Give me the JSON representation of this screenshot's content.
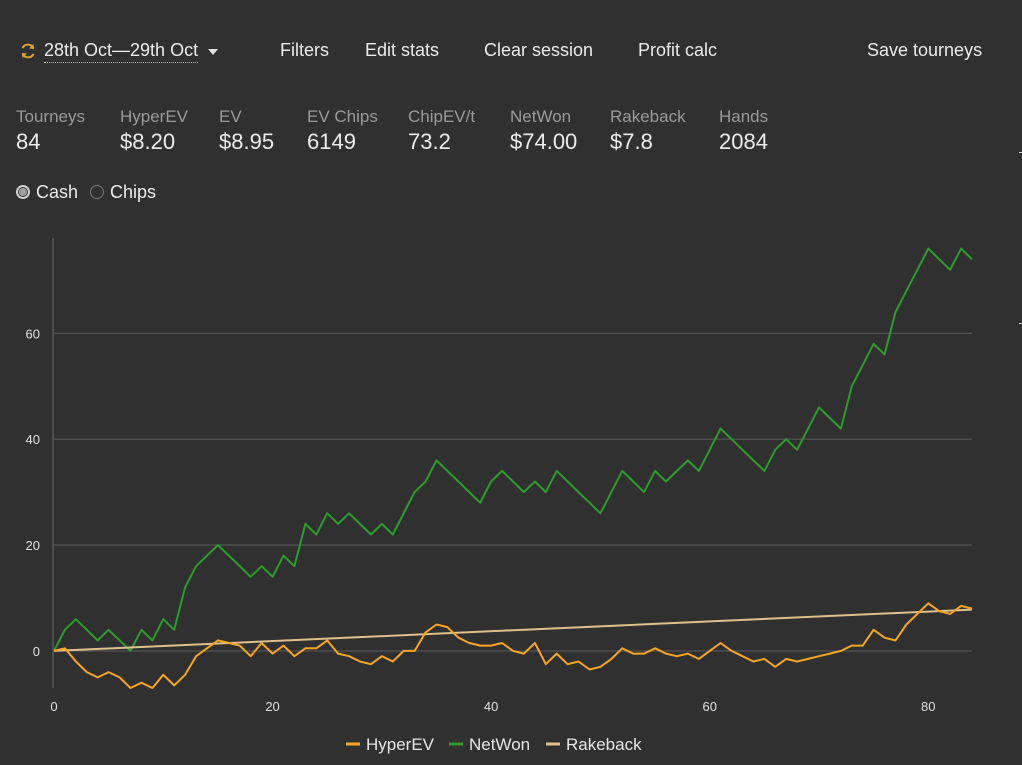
{
  "toolbar": {
    "date_range": "28th Oct—29th Oct",
    "filters": "Filters",
    "edit_stats": "Edit stats",
    "clear_session": "Clear session",
    "profit_calc": "Profit calc",
    "save_tourneys": "Save tourneys"
  },
  "stats": [
    {
      "label": "Tourneys",
      "value": "84"
    },
    {
      "label": "HyperEV",
      "value": "$8.20"
    },
    {
      "label": "EV",
      "value": "$8.95"
    },
    {
      "label": "EV Chips",
      "value": "6149"
    },
    {
      "label": "ChipEV/t",
      "value": "73.2"
    },
    {
      "label": "NetWon",
      "value": "$74.00"
    },
    {
      "label": "Rakeback",
      "value": "$7.8"
    },
    {
      "label": "Hands",
      "value": "2084"
    }
  ],
  "mode": {
    "options": [
      "Cash",
      "Chips"
    ],
    "selected": "Cash"
  },
  "chart_data": {
    "type": "line",
    "xlim": [
      0,
      84
    ],
    "ylim": [
      -7,
      78
    ],
    "x_ticks": [
      0,
      20,
      40,
      60,
      80
    ],
    "y_ticks": [
      0,
      20,
      40,
      60
    ],
    "grid": true,
    "legend_position": "bottom",
    "series": [
      {
        "name": "HyperEV",
        "color": "#f5a623",
        "values": [
          0,
          0.5,
          -2,
          -4,
          -5,
          -4,
          -5,
          -7,
          -6,
          -7,
          -4.5,
          -6.5,
          -4.5,
          -1,
          0.5,
          2,
          1.5,
          1,
          -1,
          1.5,
          -0.5,
          1,
          -1,
          0.5,
          0.5,
          2,
          -0.5,
          -1,
          -2,
          -2.5,
          -1,
          -2,
          0,
          0,
          3.5,
          5,
          4.5,
          2.5,
          1.5,
          1,
          1,
          1.5,
          0,
          -0.5,
          1.5,
          -2.5,
          -0.5,
          -2.5,
          -2,
          -3.5,
          -3,
          -1.5,
          0.5,
          -0.5,
          -0.5,
          0.5,
          -0.5,
          -1,
          -0.5,
          -1.5,
          0,
          1.5,
          0,
          -1,
          -2,
          -1.5,
          -3,
          -1.5,
          -2,
          -1.5,
          -1,
          -0.5,
          0,
          1,
          1,
          4,
          2.5,
          2,
          5,
          7,
          9,
          7.5,
          7,
          8.5,
          8
        ]
      },
      {
        "name": "NetWon",
        "color": "#2e9b2e",
        "values": [
          0,
          4,
          6,
          4,
          2,
          4,
          2,
          0,
          4,
          2,
          6,
          4,
          12,
          16,
          18,
          20,
          18,
          16,
          14,
          16,
          14,
          18,
          16,
          24,
          22,
          26,
          24,
          26,
          24,
          22,
          24,
          22,
          26,
          30,
          32,
          36,
          34,
          32,
          30,
          28,
          32,
          34,
          32,
          30,
          32,
          30,
          34,
          32,
          30,
          28,
          26,
          30,
          34,
          32,
          30,
          34,
          32,
          34,
          36,
          34,
          38,
          42,
          40,
          38,
          36,
          34,
          38,
          40,
          38,
          42,
          46,
          44,
          42,
          50,
          54,
          58,
          56,
          64,
          68,
          72,
          76,
          74,
          72,
          76,
          74
        ]
      },
      {
        "name": "Rakeback",
        "color": "#e0c08c",
        "values": [
          0,
          7.8
        ]
      }
    ]
  }
}
